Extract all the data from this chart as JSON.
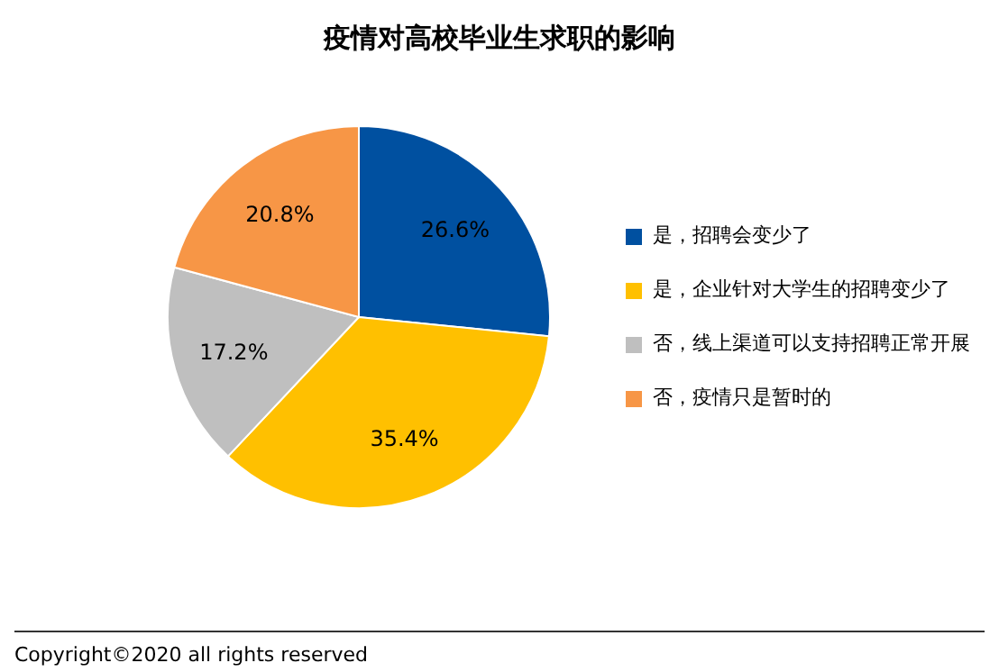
{
  "chart_data": {
    "type": "pie",
    "title": "疫情对高校毕业生求职的影响",
    "categories": [
      "是，招聘会变少了",
      "是，企业针对大学生的招聘变少了",
      "否，线上渠道可以支持招聘正常开展",
      "否，疫情只是暂时的"
    ],
    "values": [
      26.6,
      35.4,
      17.2,
      20.8
    ],
    "value_labels": [
      "26.6%",
      "35.4%",
      "17.2%",
      "20.8%"
    ],
    "colors": [
      "#0050a0",
      "#ffc000",
      "#bfbfbf",
      "#f79646"
    ],
    "legend": "right",
    "annotations": [
      "Copyright©2020 all rights reserved"
    ]
  }
}
